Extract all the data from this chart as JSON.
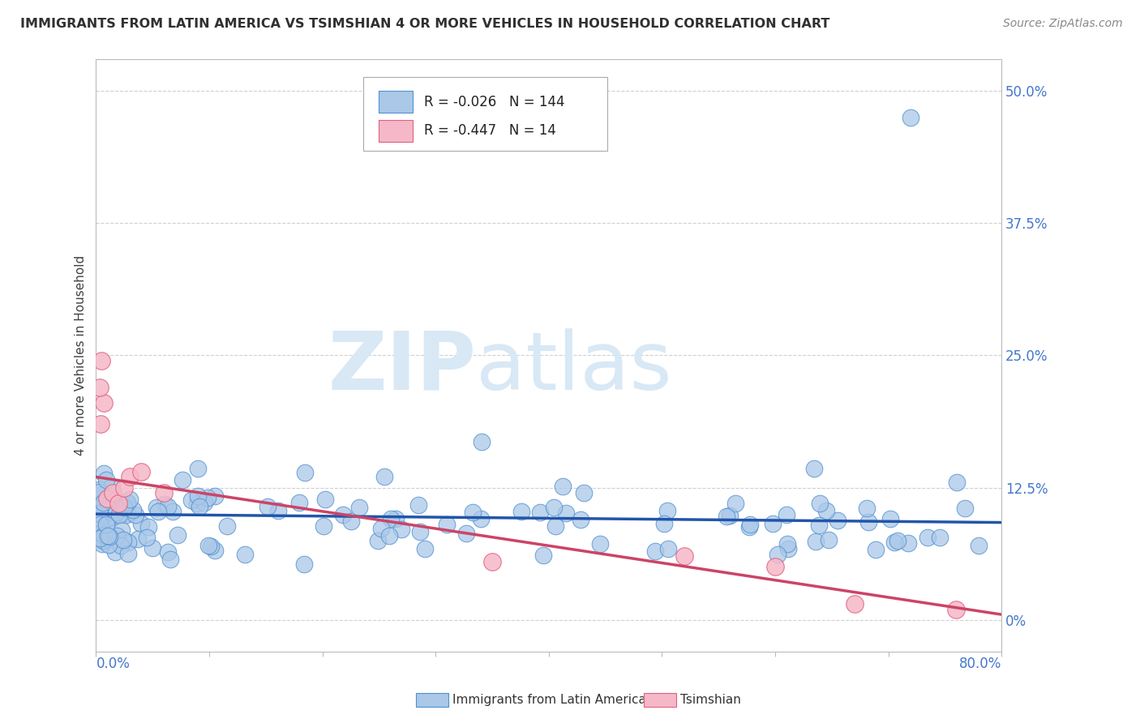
{
  "title": "IMMIGRANTS FROM LATIN AMERICA VS TSIMSHIAN 4 OR MORE VEHICLES IN HOUSEHOLD CORRELATION CHART",
  "source": "Source: ZipAtlas.com",
  "ylabel": "4 or more Vehicles in Household",
  "watermark_bold": "ZIP",
  "watermark_light": "atlas",
  "xmin": 0.0,
  "xmax": 80.0,
  "ymin": -3.0,
  "ymax": 53.0,
  "yticks": [
    0.0,
    12.5,
    25.0,
    37.5,
    50.0
  ],
  "blue_R": -0.026,
  "blue_N": 144,
  "pink_R": -0.447,
  "pink_N": 14,
  "blue_color": "#aac8e8",
  "blue_edge_color": "#5090d0",
  "blue_line_color": "#2255aa",
  "pink_color": "#f5b8c8",
  "pink_edge_color": "#e06080",
  "pink_line_color": "#cc4466",
  "legend_label_blue": "Immigrants from Latin America",
  "legend_label_pink": "Tsimshian",
  "background_color": "#ffffff",
  "grid_color": "#d0d0d0",
  "title_color": "#303030",
  "axis_tick_color": "#4477cc",
  "source_color": "#888888"
}
